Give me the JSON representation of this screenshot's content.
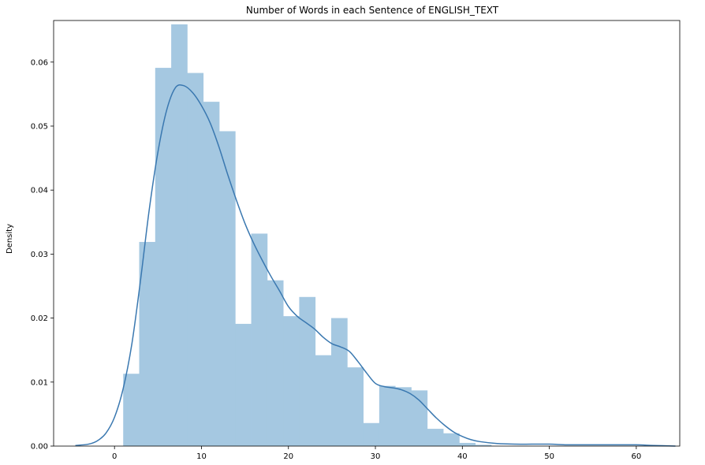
{
  "chart_data": {
    "type": "bar",
    "title": "Number of Words in each Sentence of ENGLISH_TEXT",
    "xlabel": "",
    "ylabel": "Density",
    "xlim": [
      -7,
      65
    ],
    "ylim": [
      0,
      0.0665
    ],
    "x_ticks": [
      0,
      10,
      20,
      30,
      40,
      50,
      60
    ],
    "y_ticks": [
      0.0,
      0.01,
      0.02,
      0.03,
      0.04,
      0.05,
      0.06
    ],
    "y_tick_labels": [
      "0.00",
      "0.01",
      "0.02",
      "0.03",
      "0.04",
      "0.05",
      "0.06"
    ],
    "grid": false,
    "colors": {
      "bars": "#a5c8e1",
      "kde_line": "#3a78b0",
      "axes": "#000000"
    },
    "histogram": {
      "bin_edges": [
        1.0,
        2.84,
        4.68,
        6.52,
        8.36,
        10.2,
        12.04,
        13.88,
        15.72,
        17.56,
        19.4,
        21.24,
        23.08,
        24.92,
        26.76,
        28.6,
        30.44,
        32.28,
        34.12,
        35.96,
        37.8,
        39.64,
        41.48,
        43.32
      ],
      "densities": [
        0.0113,
        0.0319,
        0.0591,
        0.0659,
        0.0583,
        0.0538,
        0.0492,
        0.0191,
        0.0332,
        0.0259,
        0.0203,
        0.0233,
        0.0142,
        0.02,
        0.0123,
        0.0036,
        0.0094,
        0.0092,
        0.0087,
        0.0027,
        0.002,
        0.0005,
        0.0002
      ]
    },
    "kde": {
      "x": [
        -4.5,
        -3,
        -2,
        -1,
        0,
        1,
        2,
        3,
        4,
        5,
        6,
        7,
        8,
        9,
        10,
        11,
        12,
        13,
        14,
        15,
        16,
        17,
        18,
        19,
        20,
        21,
        22,
        23,
        24,
        25,
        26,
        27,
        28,
        29,
        30,
        31,
        32,
        33,
        34,
        35,
        36,
        37,
        38,
        39,
        40,
        41,
        42,
        44,
        46,
        48,
        50,
        52,
        54,
        56,
        58,
        60,
        62,
        64.5
      ],
      "y": [
        0.0001,
        0.0003,
        0.0008,
        0.002,
        0.0045,
        0.009,
        0.016,
        0.026,
        0.037,
        0.046,
        0.0525,
        0.056,
        0.0563,
        0.0552,
        0.0532,
        0.0505,
        0.0468,
        0.0425,
        0.0385,
        0.0348,
        0.0317,
        0.029,
        0.0265,
        0.0242,
        0.0218,
        0.0203,
        0.0193,
        0.0183,
        0.017,
        0.016,
        0.0155,
        0.0148,
        0.0132,
        0.0114,
        0.0098,
        0.0093,
        0.0091,
        0.0088,
        0.0082,
        0.0072,
        0.0058,
        0.0044,
        0.0032,
        0.0022,
        0.0015,
        0.001,
        0.0007,
        0.0004,
        0.0003,
        0.0003,
        0.0003,
        0.0002,
        0.0002,
        0.0002,
        0.0002,
        0.0002,
        0.0001,
        0.0
      ]
    }
  }
}
